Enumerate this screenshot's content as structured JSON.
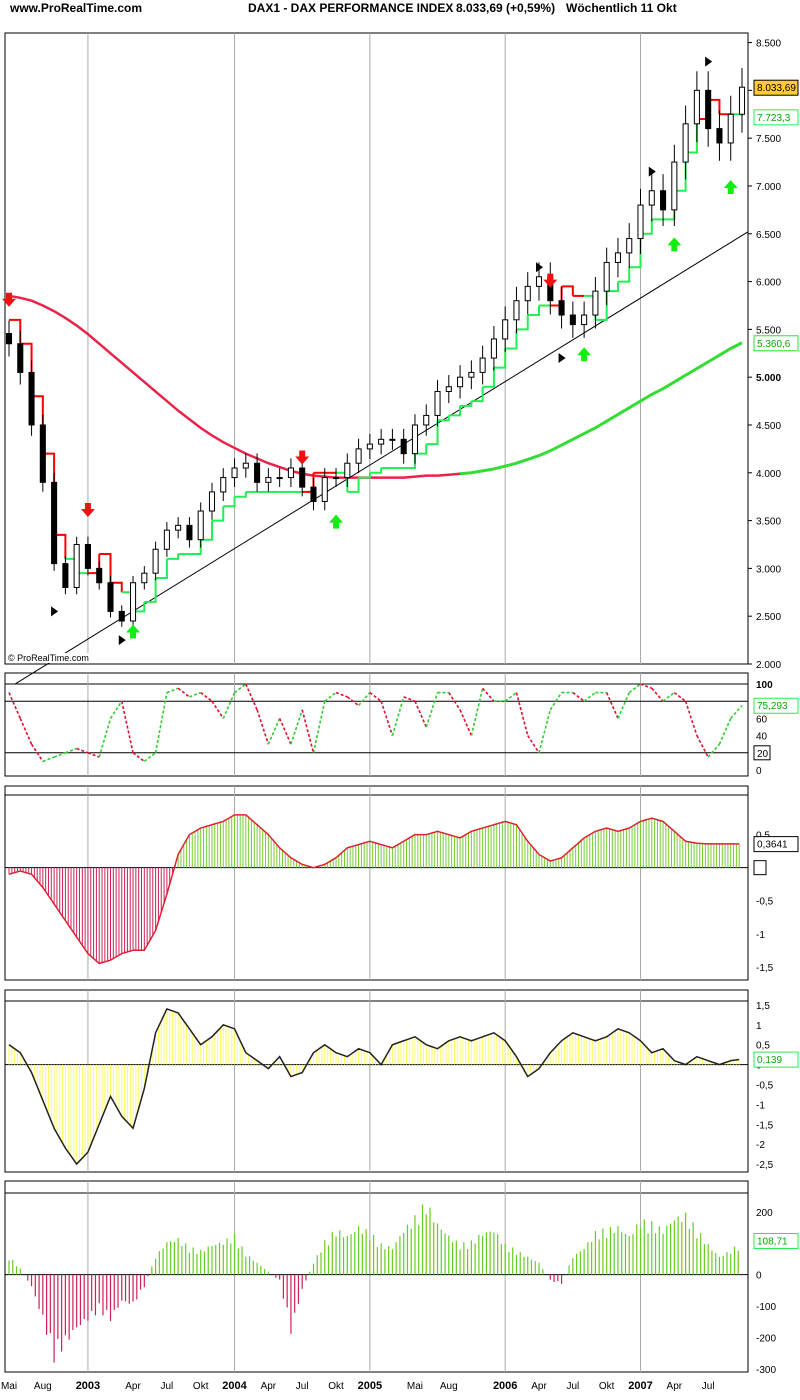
{
  "header": {
    "site": "www.ProRealTime.com",
    "title": "DAX1 - DAX PERFORMANCE INDEX",
    "quote": "8.033,69 (+0,59%)",
    "period": "Wöchentlich  11 Okt",
    "copyright": "© ProRealTime.com"
  },
  "colors": {
    "up": "#00d000",
    "down": "#e00000",
    "ma_long": "#e8244a",
    "ma_long_up": "#33dd33",
    "trail_up": "#22ee55",
    "trail_down": "#ff0000",
    "macd_pos": "#77cc33",
    "macd_neg": "#cc2255",
    "osc": "#ffff66",
    "last_price_bg": "#ffcc33"
  },
  "chart_data": [
    {
      "type": "candlestick",
      "panel": "price",
      "timeframe": "weekly",
      "x_axis_labels": [
        "Mai",
        "Aug",
        "2003",
        "Apr",
        "Jul",
        "Okt",
        "2004",
        "Apr",
        "Jul",
        "Okt",
        "2005",
        "Mai",
        "Aug",
        "2006",
        "Apr",
        "Jul",
        "Okt",
        "2007",
        "Apr",
        "Jul"
      ],
      "ylim": [
        2000,
        8600
      ],
      "yticks": [
        2000,
        2500,
        3000,
        3500,
        4000,
        4500,
        5000,
        5500,
        6000,
        6500,
        7000,
        7500,
        8000,
        8500
      ],
      "ytick_labels": [
        "2.000",
        "2.500",
        "3.000",
        "3.500",
        "4.000",
        "4.500",
        "5.000",
        "5.500",
        "6.000",
        "6.500",
        "7.000",
        "7.500",
        "8.000",
        "8.500"
      ],
      "x": [
        "2002-05",
        "2002-06",
        "2002-07",
        "2002-08",
        "2002-09",
        "2002-10",
        "2002-11",
        "2002-12",
        "2003-01",
        "2003-02",
        "2003-03",
        "2003-04",
        "2003-05",
        "2003-06",
        "2003-07",
        "2003-08",
        "2003-09",
        "2003-10",
        "2003-11",
        "2003-12",
        "2004-01",
        "2004-02",
        "2004-03",
        "2004-04",
        "2004-05",
        "2004-06",
        "2004-07",
        "2004-08",
        "2004-09",
        "2004-10",
        "2004-11",
        "2004-12",
        "2005-01",
        "2005-02",
        "2005-03",
        "2005-04",
        "2005-05",
        "2005-06",
        "2005-07",
        "2005-08",
        "2005-09",
        "2005-10",
        "2005-11",
        "2005-12",
        "2006-01",
        "2006-02",
        "2006-03",
        "2006-04",
        "2006-05",
        "2006-06",
        "2006-07",
        "2006-08",
        "2006-09",
        "2006-10",
        "2006-11",
        "2006-12",
        "2007-01",
        "2007-02",
        "2007-03",
        "2007-04",
        "2007-05",
        "2007-06",
        "2007-07",
        "2007-08",
        "2007-09",
        "2007-10"
      ],
      "close": [
        5350,
        5050,
        4500,
        3900,
        3050,
        2800,
        3250,
        3000,
        2850,
        2550,
        2450,
        2850,
        2950,
        3200,
        3400,
        3450,
        3300,
        3600,
        3800,
        3950,
        4050,
        4100,
        3900,
        3950,
        3950,
        4050,
        3850,
        3700,
        3950,
        3950,
        4100,
        4250,
        4300,
        4350,
        4350,
        4200,
        4500,
        4600,
        4850,
        4900,
        5000,
        5050,
        5200,
        5400,
        5600,
        5800,
        5950,
        6050,
        5800,
        5650,
        5550,
        5650,
        5900,
        6200,
        6300,
        6450,
        6800,
        6950,
        6750,
        7250,
        7650,
        8000,
        7600,
        7450,
        7750,
        8033
      ],
      "highlight": {
        "last_price": "8.033,69",
        "trail_value": "7.723,3",
        "ma_value": "5.360,6"
      },
      "series": [
        {
          "name": "MA",
          "type": "line",
          "values": [
            5850,
            5830,
            5800,
            5750,
            5690,
            5620,
            5540,
            5450,
            5350,
            5250,
            5150,
            5050,
            4950,
            4850,
            4750,
            4650,
            4560,
            4470,
            4390,
            4320,
            4260,
            4200,
            4150,
            4100,
            4060,
            4020,
            3990,
            3970,
            3960,
            3950,
            3950,
            3950,
            3950,
            3950,
            3950,
            3950,
            3960,
            3970,
            3970,
            3980,
            3990,
            4000,
            4020,
            4040,
            4070,
            4100,
            4140,
            4180,
            4230,
            4290,
            4350,
            4410,
            4470,
            4540,
            4610,
            4680,
            4750,
            4820,
            4880,
            4950,
            5020,
            5090,
            5160,
            5230,
            5300,
            5360
          ]
        }
      ],
      "signals": [
        {
          "type": "sell",
          "x": "2002-05",
          "price": 5800
        },
        {
          "type": "sell",
          "x": "2002-12",
          "price": 3600
        },
        {
          "type": "buy",
          "x": "2003-04",
          "price": 2350
        },
        {
          "type": "sell",
          "x": "2004-07",
          "price": 4150
        },
        {
          "type": "buy",
          "x": "2004-10",
          "price": 3500
        },
        {
          "type": "sell",
          "x": "2006-05",
          "price": 6000
        },
        {
          "type": "buy",
          "x": "2006-08",
          "price": 5250
        },
        {
          "type": "buy",
          "x": "2007-04",
          "price": 6400
        },
        {
          "type": "buy",
          "x": "2007-09",
          "price": 7000
        }
      ],
      "trendline": {
        "from": [
          "2002-10",
          1950
        ],
        "to": [
          "2007-10",
          6500
        ]
      }
    },
    {
      "type": "line",
      "panel": "stochastic",
      "ylim": [
        0,
        100
      ],
      "ytick_labels": [
        "100",
        "80",
        "60",
        "40",
        "20",
        "0"
      ],
      "yticks": [
        100,
        80,
        60,
        40,
        20,
        0
      ],
      "levels": [
        80,
        20
      ],
      "last_value": "75,293",
      "level_label": "20",
      "values": [
        90,
        60,
        30,
        10,
        15,
        20,
        25,
        20,
        15,
        60,
        80,
        20,
        10,
        20,
        90,
        95,
        85,
        90,
        80,
        60,
        90,
        100,
        70,
        30,
        60,
        30,
        70,
        20,
        80,
        90,
        85,
        75,
        90,
        80,
        40,
        85,
        80,
        50,
        90,
        90,
        70,
        40,
        95,
        80,
        80,
        90,
        40,
        20,
        70,
        90,
        90,
        80,
        90,
        90,
        60,
        90,
        100,
        95,
        80,
        90,
        80,
        40,
        15,
        30,
        60,
        75
      ]
    },
    {
      "type": "bar",
      "panel": "macd",
      "ylim": [
        -1.7,
        1.1
      ],
      "yticks": [
        0.5,
        0,
        -0.5,
        -1,
        -1.5
      ],
      "ytick_labels": [
        "0,5",
        "0",
        "-0,5",
        "-1",
        "-1,5"
      ],
      "last_value": "0,3641",
      "values": [
        -0.1,
        -0.05,
        -0.1,
        -0.3,
        -0.55,
        -0.8,
        -1.05,
        -1.3,
        -1.45,
        -1.4,
        -1.3,
        -1.25,
        -1.25,
        -0.95,
        -0.4,
        0.2,
        0.5,
        0.6,
        0.65,
        0.7,
        0.8,
        0.8,
        0.65,
        0.5,
        0.3,
        0.15,
        0.05,
        0,
        0.05,
        0.15,
        0.3,
        0.35,
        0.4,
        0.35,
        0.3,
        0.4,
        0.5,
        0.5,
        0.55,
        0.5,
        0.45,
        0.55,
        0.6,
        0.65,
        0.7,
        0.65,
        0.4,
        0.2,
        0.1,
        0.15,
        0.3,
        0.45,
        0.55,
        0.6,
        0.55,
        0.6,
        0.7,
        0.75,
        0.7,
        0.55,
        0.4,
        0.37,
        0.36,
        0.36,
        0.36,
        0.36
      ]
    },
    {
      "type": "bar",
      "panel": "momentum",
      "ylim": [
        -2.7,
        1.6
      ],
      "yticks": [
        1.5,
        1,
        0.5,
        0,
        -0.5,
        -1,
        -1.5,
        -2,
        -2.5
      ],
      "ytick_labels": [
        "1,5",
        "1",
        "0,5",
        "0",
        "-0,5",
        "-1",
        "-1,5",
        "-2",
        "-2,5"
      ],
      "last_value": "0,139",
      "values": [
        0.5,
        0.3,
        -0.2,
        -0.9,
        -1.6,
        -2.1,
        -2.5,
        -2.2,
        -1.5,
        -0.8,
        -1.3,
        -1.6,
        -0.6,
        0.8,
        1.4,
        1.3,
        0.9,
        0.5,
        0.7,
        1.0,
        0.9,
        0.3,
        0.1,
        -0.1,
        0.2,
        -0.3,
        -0.2,
        0.3,
        0.5,
        0.3,
        0.2,
        0.4,
        0.3,
        0.0,
        0.5,
        0.6,
        0.7,
        0.5,
        0.4,
        0.6,
        0.7,
        0.6,
        0.7,
        0.8,
        0.6,
        0.2,
        -0.3,
        -0.1,
        0.3,
        0.6,
        0.8,
        0.7,
        0.6,
        0.7,
        0.9,
        0.8,
        0.6,
        0.3,
        0.4,
        0.1,
        0.0,
        0.2,
        0.1,
        0.0,
        0.1,
        0.139
      ]
    },
    {
      "type": "bar",
      "panel": "volume_oscillator",
      "ylim": [
        -310,
        260
      ],
      "yticks": [
        200,
        100,
        0,
        -100,
        -200,
        -300
      ],
      "ytick_labels": [
        "200",
        "100",
        "0",
        "-100",
        "-200",
        "-300"
      ],
      "last_value": "108,71",
      "values": [
        60,
        20,
        -40,
        -150,
        -280,
        -230,
        -180,
        -150,
        -120,
        -150,
        -90,
        -100,
        -40,
        60,
        110,
        120,
        90,
        80,
        100,
        110,
        130,
        70,
        40,
        10,
        -20,
        -190,
        -50,
        40,
        110,
        150,
        130,
        160,
        140,
        100,
        90,
        150,
        190,
        240,
        170,
        130,
        100,
        110,
        140,
        150,
        100,
        80,
        60,
        40,
        -20,
        -30,
        60,
        90,
        140,
        150,
        160,
        130,
        180,
        170,
        150,
        190,
        200,
        150,
        100,
        60,
        80,
        108.71
      ]
    }
  ]
}
